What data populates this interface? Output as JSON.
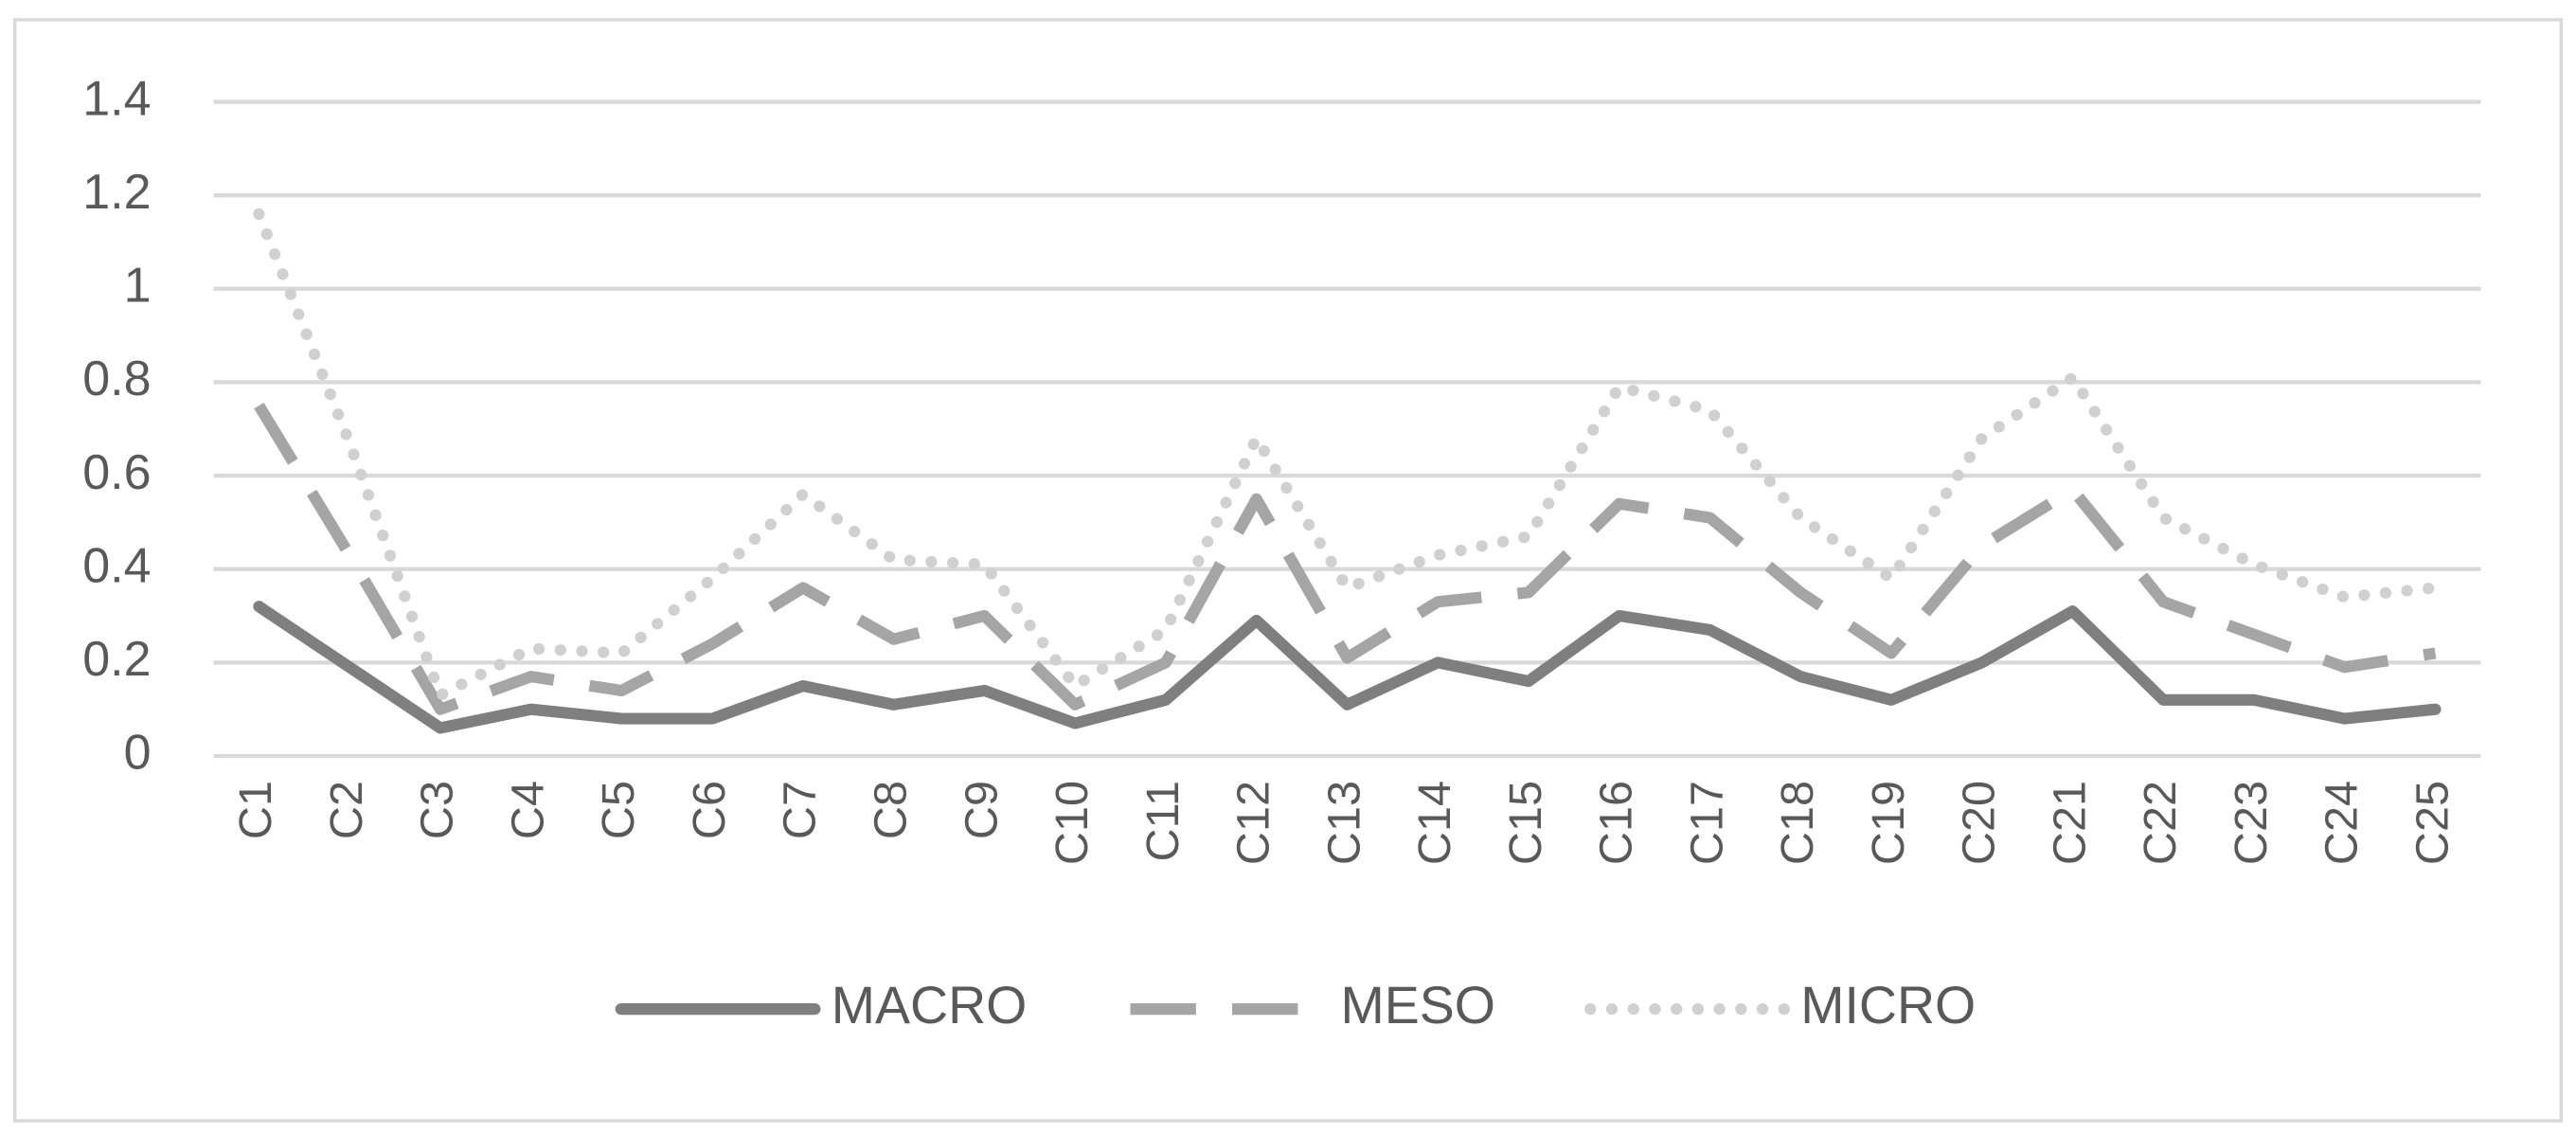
{
  "chart_data": {
    "type": "line",
    "categories": [
      "C1",
      "C2",
      "C3",
      "C4",
      "C5",
      "C6",
      "C7",
      "C8",
      "C9",
      "C10",
      "C11",
      "C12",
      "C13",
      "C14",
      "C15",
      "C16",
      "C17",
      "C18",
      "C19",
      "C20",
      "C21",
      "C22",
      "C23",
      "C24",
      "C25"
    ],
    "series": [
      {
        "name": "MACRO",
        "color": "#7f7f7f",
        "line_style": "solid",
        "values": [
          0.32,
          0.19,
          0.06,
          0.1,
          0.08,
          0.08,
          0.15,
          0.11,
          0.14,
          0.07,
          0.12,
          0.29,
          0.11,
          0.2,
          0.16,
          0.3,
          0.27,
          0.17,
          0.12,
          0.2,
          0.31,
          0.12,
          0.12,
          0.08,
          0.1
        ]
      },
      {
        "name": "MESO",
        "color": "#a5a5a5",
        "line_style": "dash",
        "values": [
          0.75,
          0.43,
          0.1,
          0.17,
          0.14,
          0.24,
          0.36,
          0.25,
          0.3,
          0.11,
          0.2,
          0.55,
          0.21,
          0.33,
          0.35,
          0.54,
          0.51,
          0.35,
          0.22,
          0.45,
          0.57,
          0.33,
          0.26,
          0.19,
          0.22
        ]
      },
      {
        "name": "MICRO",
        "color": "#d0d0d0",
        "line_style": "dot",
        "values": [
          1.16,
          0.67,
          0.13,
          0.23,
          0.22,
          0.38,
          0.56,
          0.42,
          0.41,
          0.15,
          0.27,
          0.68,
          0.36,
          0.43,
          0.47,
          0.79,
          0.74,
          0.51,
          0.38,
          0.68,
          0.81,
          0.51,
          0.41,
          0.34,
          0.36
        ]
      }
    ],
    "ylim": [
      0,
      1.4
    ],
    "yticks": [
      0,
      0.2,
      0.4,
      0.6,
      0.8,
      1,
      1.2,
      1.4
    ],
    "grid": true,
    "legend": "bottom"
  }
}
